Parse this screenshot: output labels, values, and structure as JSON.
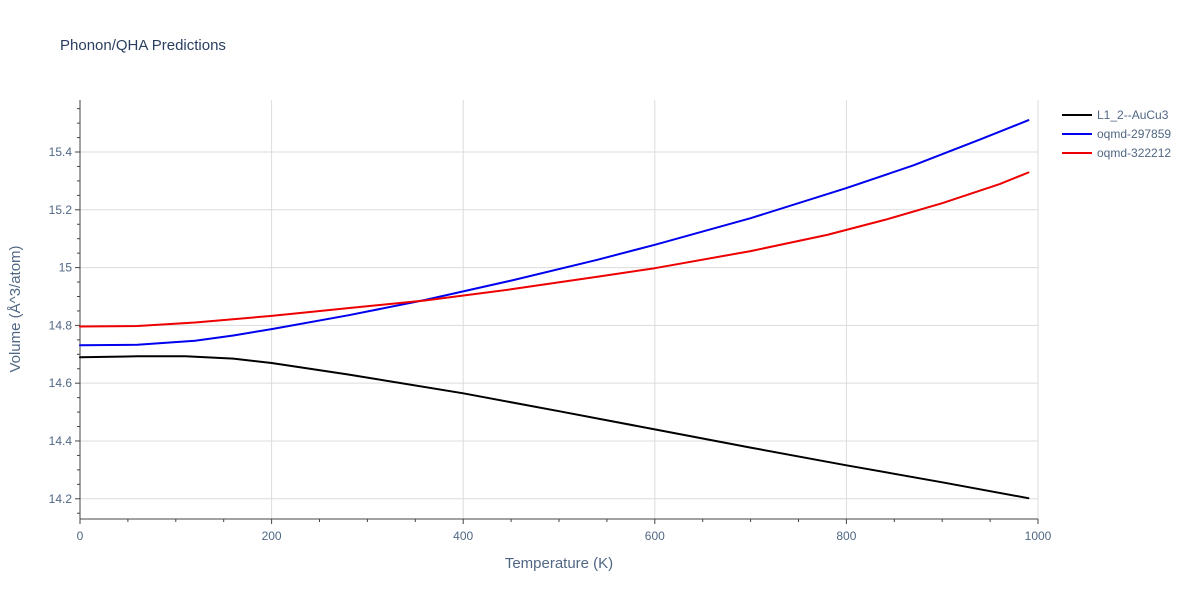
{
  "chart_data": {
    "type": "line",
    "title": "Phonon/QHA Predictions",
    "xlabel": "Temperature (K)",
    "ylabel": "Volume (Å^3/atom)",
    "xlim": [
      0,
      1000
    ],
    "ylim": [
      14.13,
      15.58
    ],
    "x_ticks": [
      0,
      200,
      400,
      600,
      800,
      1000
    ],
    "y_ticks": [
      14.2,
      14.4,
      14.6,
      14.8,
      15,
      15.2,
      15.4
    ],
    "x_tick_labels": [
      "0",
      "200",
      "400",
      "600",
      "800",
      "1000"
    ],
    "y_tick_labels": [
      "14.2",
      "14.4",
      "14.6",
      "14.8",
      "15",
      "15.2",
      "15.4"
    ],
    "grid": true,
    "legend_position": "top-right",
    "series": [
      {
        "name": "L1_2--AuCu3",
        "color": "#000000",
        "x": [
          0,
          60,
          110,
          160,
          200,
          280,
          400,
          500,
          600,
          700,
          800,
          900,
          990
        ],
        "y": [
          14.69,
          14.693,
          14.693,
          14.685,
          14.67,
          14.63,
          14.565,
          14.503,
          14.44,
          14.377,
          14.316,
          14.257,
          14.202
        ]
      },
      {
        "name": "oqmd-297859",
        "color": "#0000ee",
        "x": [
          0,
          60,
          120,
          160,
          200,
          280,
          360,
          450,
          540,
          600,
          700,
          800,
          870,
          940,
          990
        ],
        "y": [
          14.731,
          14.733,
          14.747,
          14.765,
          14.787,
          14.835,
          14.888,
          14.955,
          15.027,
          15.079,
          15.171,
          15.275,
          15.354,
          15.444,
          15.51
        ]
      },
      {
        "name": "oqmd-322212",
        "color": "#ee0000",
        "x": [
          0,
          60,
          120,
          200,
          280,
          360,
          450,
          540,
          600,
          700,
          780,
          840,
          900,
          960,
          990
        ],
        "y": [
          14.796,
          14.798,
          14.81,
          14.833,
          14.86,
          14.886,
          14.925,
          14.968,
          14.998,
          15.057,
          15.113,
          15.165,
          15.223,
          15.289,
          15.329
        ]
      }
    ]
  }
}
